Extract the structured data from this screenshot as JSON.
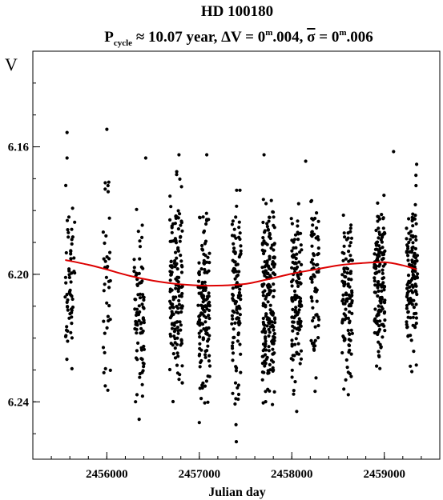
{
  "chart_data": {
    "type": "scatter",
    "title": "HD 100180",
    "subtitle": {
      "p": "P",
      "cycle": "cycle",
      "period": " ≈ 10.07 year, ΔV = 0",
      "m1": "m",
      "amp": ".004, ",
      "sigma": "σ",
      "eq": " = 0",
      "m2": "m",
      "sd": ".006"
    },
    "xlabel": "Julian day",
    "ylabel": "V",
    "xlim": [
      2455200,
      2459600
    ],
    "ylim": [
      6.13,
      6.258
    ],
    "y_inverted": true,
    "grid": false,
    "x_ticks": [
      2456000,
      2457000,
      2458000,
      2459000
    ],
    "y_ticks": [
      6.16,
      6.2,
      6.24
    ],
    "x_tick_labels": [
      "2456000",
      "2457000",
      "2458000",
      "2459000"
    ],
    "y_tick_labels": [
      "6.16",
      "6.20",
      "6.24"
    ],
    "observations": {
      "color": "#000000",
      "seasons_center_jd": [
        2455600,
        2456000,
        2456350,
        2456750,
        2457050,
        2457400,
        2457750,
        2458050,
        2458250,
        2458600,
        2458950,
        2459300
      ],
      "seasons_halfwidth_jd": [
        55,
        40,
        55,
        70,
        65,
        50,
        70,
        55,
        45,
        55,
        60,
        60
      ],
      "seasons_count": [
        60,
        38,
        85,
        150,
        140,
        110,
        200,
        130,
        70,
        110,
        150,
        130
      ],
      "seasons_v_range": [
        [
          6.1625,
          6.2394
        ],
        [
          6.1565,
          6.2506
        ],
        [
          6.1715,
          6.2536
        ],
        [
          6.1616,
          6.2501
        ],
        [
          6.1716,
          6.2488
        ],
        [
          6.1606,
          6.2536
        ],
        [
          6.159,
          6.2521
        ],
        [
          6.1645,
          6.2485
        ],
        [
          6.1631,
          6.2429
        ],
        [
          6.1706,
          6.247
        ],
        [
          6.1645,
          6.2394
        ],
        [
          6.164,
          6.2379
        ]
      ],
      "sample_extremes": [
        {
          "jd": 2455570,
          "v": 6.1555
        },
        {
          "jd": 2455570,
          "v": 6.1635
        },
        {
          "jd": 2456000,
          "v": 6.1545
        },
        {
          "jd": 2456420,
          "v": 6.1635
        },
        {
          "jd": 2456780,
          "v": 6.1625
        },
        {
          "jd": 2457080,
          "v": 6.1625
        },
        {
          "jd": 2457000,
          "v": 6.2465
        },
        {
          "jd": 2457400,
          "v": 6.2525
        },
        {
          "jd": 2457700,
          "v": 6.1625
        },
        {
          "jd": 2458150,
          "v": 6.1645
        },
        {
          "jd": 2459100,
          "v": 6.1615
        },
        {
          "jd": 2459350,
          "v": 6.1655
        }
      ]
    },
    "fit": {
      "color": "#dd0000",
      "x": [
        2455550,
        2455800,
        2456000,
        2456250,
        2456500,
        2456750,
        2457000,
        2457250,
        2457500,
        2457750,
        2458000,
        2458250,
        2458500,
        2458750,
        2459000,
        2459200,
        2459350
      ],
      "v": [
        6.1955,
        6.197,
        6.1985,
        6.2005,
        6.202,
        6.203,
        6.2035,
        6.2035,
        6.203,
        6.2015,
        6.1998,
        6.1985,
        6.1972,
        6.1965,
        6.1962,
        6.1972,
        6.1985
      ]
    }
  }
}
